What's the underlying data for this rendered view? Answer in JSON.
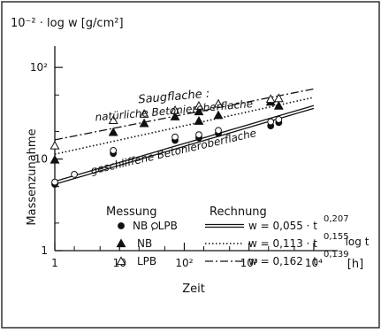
{
  "chart_data": {
    "type": "scatter",
    "x_scale": "log",
    "y_scale": "log",
    "xlim": [
      1,
      20000
    ],
    "ylim": [
      1,
      200
    ],
    "grid": false,
    "ylabel_top": "10⁻² · log w  [g/cm²]",
    "ylabel": "Massenzunahme",
    "xlabel": "Zeit",
    "x_unit": "[h]",
    "x_axis_tag": "log t",
    "x_ticks": [
      {
        "v": 1,
        "label": "1"
      },
      {
        "v": 10,
        "label": "10"
      },
      {
        "v": 100,
        "label": "10²"
      },
      {
        "v": 1000,
        "label": "10³"
      },
      {
        "v": 10000,
        "label": "10⁴"
      }
    ],
    "y_ticks": [
      {
        "v": 1,
        "label": "1"
      },
      {
        "v": 10,
        "label": "10"
      },
      {
        "v": 100,
        "label": "10²"
      }
    ],
    "annotations": [
      {
        "text": "Saugflache :",
        "x": 70,
        "y": 44
      },
      {
        "text": "natürliche Betonieroberflache",
        "x": 70,
        "y": 31
      },
      {
        "text": "geschliffene Betonieroberflache",
        "x": 70,
        "y": 11
      }
    ],
    "legend": {
      "placement": "bottom-right",
      "header_measure": "Messung",
      "header_calc": "Rechnung",
      "rows": [
        {
          "label": "NB , LPB",
          "formula": "w = 0,055 · t",
          "exponent": "0,207",
          "line": "solid",
          "marker": "circle-pair"
        },
        {
          "label": "NB",
          "formula": "w = 0,113 · t",
          "exponent": "0,155",
          "line": "dotted",
          "marker": "triangle-filled"
        },
        {
          "label": "LPB",
          "formula": "w = 0,162 · t",
          "exponent": "0,139",
          "line": "dashdot",
          "marker": "triangle-open"
        }
      ]
    },
    "series": [
      {
        "name": "NB",
        "marker": "triangle-filled",
        "points": [
          [
            1,
            9.8
          ],
          [
            8,
            19.6
          ],
          [
            24,
            24.5
          ],
          [
            72,
            29
          ],
          [
            168,
            33
          ],
          [
            168,
            26
          ],
          [
            336,
            30
          ],
          [
            2160,
            42
          ],
          [
            2880,
            38
          ]
        ]
      },
      {
        "name": "LPB",
        "marker": "triangle-open",
        "points": [
          [
            1,
            14
          ],
          [
            8,
            26.5
          ],
          [
            24,
            31
          ],
          [
            72,
            34
          ],
          [
            168,
            38
          ],
          [
            336,
            40
          ],
          [
            2160,
            45
          ],
          [
            2880,
            46
          ]
        ]
      },
      {
        "name": "NB , LPB",
        "marker": "circle-filled",
        "points": [
          [
            1,
            5.3
          ],
          [
            8,
            11.5
          ],
          [
            72,
            16
          ],
          [
            168,
            17
          ],
          [
            336,
            19
          ],
          [
            2160,
            23
          ],
          [
            2880,
            25
          ]
        ]
      },
      {
        "name": "NB , LPB",
        "marker": "circle-open",
        "points": [
          [
            1,
            5.6
          ],
          [
            2,
            6.8
          ],
          [
            8,
            12.4
          ],
          [
            72,
            17.4
          ],
          [
            168,
            18.4
          ],
          [
            336,
            20.5
          ],
          [
            2160,
            25.5
          ],
          [
            2880,
            27
          ]
        ]
      }
    ],
    "fits": [
      {
        "a": 0.055,
        "b": 0.207,
        "style": "solid",
        "double": true,
        "x_range": [
          1,
          10000
        ]
      },
      {
        "a": 0.113,
        "b": 0.155,
        "style": "dotted",
        "double": false,
        "x_range": [
          1,
          10000
        ]
      },
      {
        "a": 0.162,
        "b": 0.139,
        "style": "dashdot",
        "double": false,
        "x_range": [
          1,
          10000
        ]
      }
    ]
  }
}
